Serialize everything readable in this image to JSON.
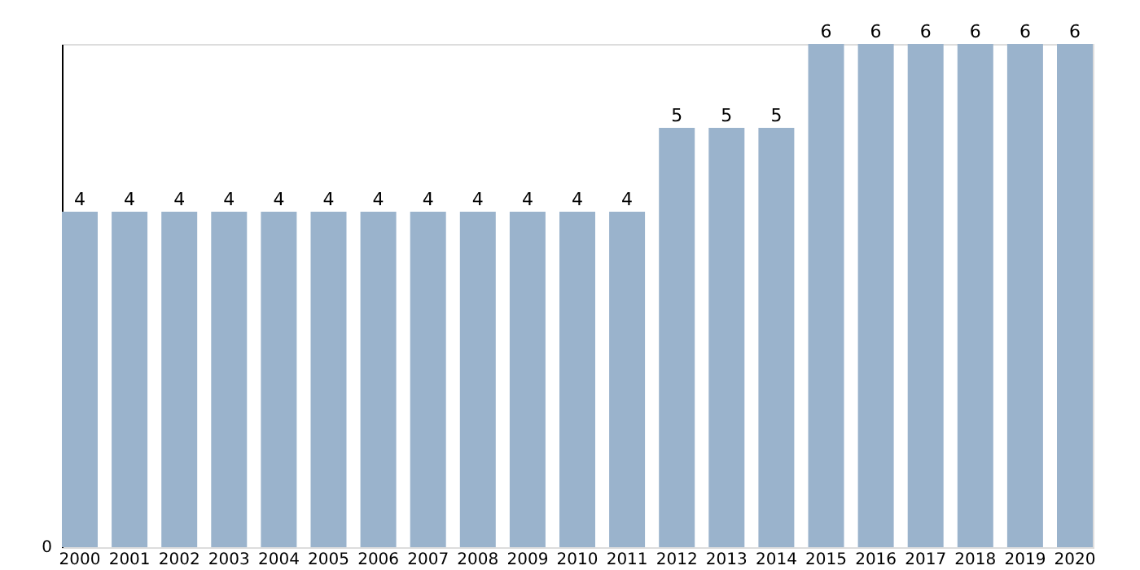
{
  "chart_data": {
    "type": "bar",
    "categories": [
      "2000",
      "2001",
      "2002",
      "2003",
      "2004",
      "2005",
      "2006",
      "2007",
      "2008",
      "2009",
      "2010",
      "2011",
      "2012",
      "2013",
      "2014",
      "2015",
      "2016",
      "2017",
      "2018",
      "2019",
      "2020"
    ],
    "values": [
      4,
      4,
      4,
      4,
      4,
      4,
      4,
      4,
      4,
      4,
      4,
      4,
      5,
      5,
      5,
      6,
      6,
      6,
      6,
      6,
      6
    ],
    "color": "#9ab3cc",
    "ylim": [
      0,
      6
    ],
    "annotations": [
      "0"
    ],
    "data_labels": true,
    "grid": false
  }
}
